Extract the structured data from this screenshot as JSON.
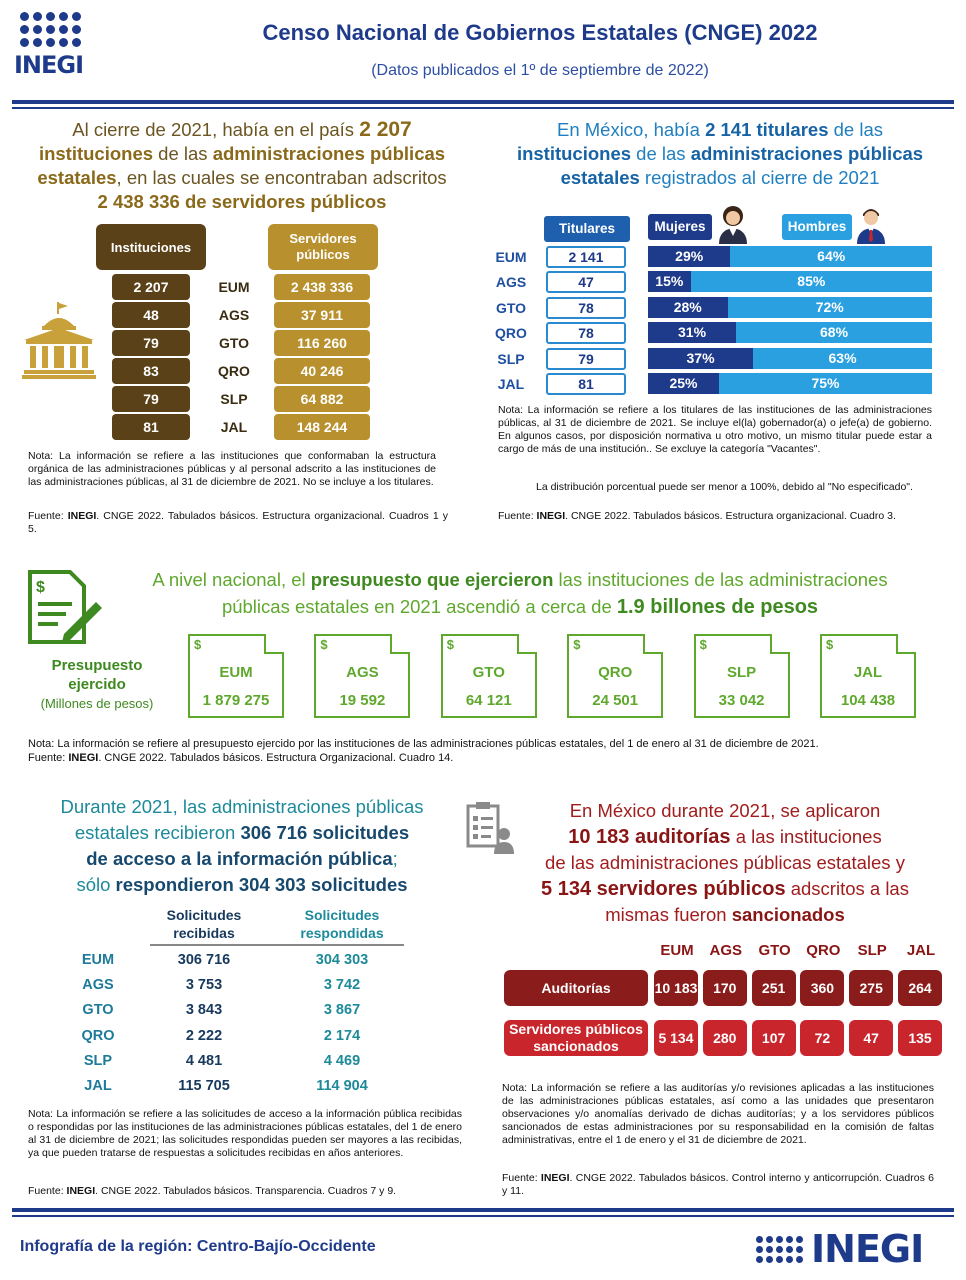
{
  "header": {
    "logo_text": "INEGI",
    "title": "Censo Nacional de Gobiernos Estatales (CNGE) 2022",
    "subtitle": "(Datos publicados el 1º de septiembre de 2022)"
  },
  "instituciones": {
    "line1a": "Al cierre de 2021, había en el país ",
    "line1b": "2 207",
    "line2a": "instituciones",
    "line2b": " de las ",
    "line2c": "administraciones públicas",
    "line3a": "estatales",
    "line3b": ", en las cuales se encontraban adscritos",
    "line4": "2 438 336 de servidores públicos",
    "col_instituciones": "Instituciones",
    "col_servidores": "Servidores públicos",
    "rows": [
      {
        "inst": "2 207",
        "state": "EUM",
        "serv": "2 438 336"
      },
      {
        "inst": "48",
        "state": "AGS",
        "serv": "37 911"
      },
      {
        "inst": "79",
        "state": "GTO",
        "serv": "116 260"
      },
      {
        "inst": "83",
        "state": "QRO",
        "serv": "40 246"
      },
      {
        "inst": "79",
        "state": "SLP",
        "serv": "64 882"
      },
      {
        "inst": "81",
        "state": "JAL",
        "serv": "148 244"
      }
    ],
    "note": "Nota: La información se refiere a las instituciones que conformaban la estructura orgánica de las administraciones públicas y al personal adscrito a las instituciones de las administraciones públicas, al 31 de diciembre de 2021. No se incluye a los titulares.",
    "source_label": "Fuente: ",
    "source_org": "INEGI",
    "source_text": ". CNGE 2022. Tabulados básicos. Estructura organizacional. Cuadros 1 y 5."
  },
  "titulares": {
    "line1a": "En México, había ",
    "line1b": "2 141 titulares",
    "line1c": " de las",
    "line2a": "instituciones",
    "line2b": " de las ",
    "line2c": "administraciones públicas",
    "line3a": "estatales",
    "line3b": " registrados al cierre de 2021",
    "col_titulares": "Titulares",
    "col_mujeres": "Mujeres",
    "col_hombres": "Hombres",
    "rows": [
      {
        "state": "EUM",
        "titulares": "2 141",
        "mujeres": "29%",
        "hombres": "64%",
        "m": 29
      },
      {
        "state": "AGS",
        "titulares": "47",
        "mujeres": "15%",
        "hombres": "85%",
        "m": 15
      },
      {
        "state": "GTO",
        "titulares": "78",
        "mujeres": "28%",
        "hombres": "72%",
        "m": 28
      },
      {
        "state": "QRO",
        "titulares": "78",
        "mujeres": "31%",
        "hombres": "68%",
        "m": 31
      },
      {
        "state": "SLP",
        "titulares": "79",
        "mujeres": "37%",
        "hombres": "63%",
        "m": 37
      },
      {
        "state": "JAL",
        "titulares": "81",
        "mujeres": "25%",
        "hombres": "75%",
        "m": 25
      }
    ],
    "note": "Nota: La información se refiere a los titulares de las instituciones de las administraciones públicas, al 31 de diciembre de 2021. Se incluye el(la) gobernador(a) o jefe(a) de gobierno. En algunos casos, por disposición normativa u otro motivo, un mismo titular puede estar a cargo de más de una institución.. Se excluye la categoría \"Vacantes\".",
    "note2": "La distribución porcentual puede ser menor a 100%, debido al \"No especificado\".",
    "source_label": "Fuente: ",
    "source_org": "INEGI",
    "source_text": ". CNGE 2022. Tabulados básicos. Estructura organizacional. Cuadro 3."
  },
  "presupuesto": {
    "line1a": "A nivel nacional, el ",
    "line1b": "presupuesto que ejercieron",
    "line1c": " las instituciones de las administraciones",
    "line2a": "públicas estatales en 2021 ascendió a cerca de ",
    "line2b": "1.9 billones de pesos",
    "label1": "Presupuesto",
    "label2": "ejercido",
    "label3": "(Millones de pesos)",
    "dollar": "$",
    "items": [
      {
        "state": "EUM",
        "value": "1 879 275"
      },
      {
        "state": "AGS",
        "value": "19 592"
      },
      {
        "state": "GTO",
        "value": "64 121"
      },
      {
        "state": "QRO",
        "value": "24 501"
      },
      {
        "state": "SLP",
        "value": "33 042"
      },
      {
        "state": "JAL",
        "value": "104 438"
      }
    ],
    "note": "Nota: La información se refiere al presupuesto ejercido por las instituciones de las administraciones públicas estatales, del 1 de enero al 31 de diciembre de 2021.",
    "source_label": "Fuente: ",
    "source_org": "INEGI",
    "source_text": ". CNGE 2022. Tabulados básicos. Estructura Organizacional. Cuadro 14."
  },
  "solicitudes": {
    "line1": "Durante 2021, las administraciones públicas",
    "line2a": "estatales recibieron ",
    "line2b": "306 716 solicitudes",
    "line3a": "de acceso a la información pública",
    "line3b": ";",
    "line4a": "sólo ",
    "line4b": "respondieron 304 303 solicitudes",
    "col_recibidas": "Solicitudes recibidas",
    "col_respondidas": "Solicitudes respondidas",
    "rows": [
      {
        "state": "EUM",
        "recibidas": "306 716",
        "respondidas": "304 303"
      },
      {
        "state": "AGS",
        "recibidas": "3 753",
        "respondidas": "3 742"
      },
      {
        "state": "GTO",
        "recibidas": "3 843",
        "respondidas": "3 867"
      },
      {
        "state": "QRO",
        "recibidas": "2 222",
        "respondidas": "2 174"
      },
      {
        "state": "SLP",
        "recibidas": "4 481",
        "respondidas": "4 469"
      },
      {
        "state": "JAL",
        "recibidas": "115 705",
        "respondidas": "114 904"
      }
    ],
    "note": "Nota: La información se refiere a las solicitudes de acceso a la información pública recibidas o respondidas por las instituciones de las administraciones públicas estatales, del 1 de enero al 31 de diciembre de 2021; las solicitudes respondidas pueden ser mayores a las recibidas, ya que pueden tratarse de respuestas a solicitudes recibidas en años anteriores.",
    "source_label": "Fuente: ",
    "source_org": "INEGI",
    "source_text": ". CNGE 2022. Tabulados básicos. Transparencia. Cuadros 7 y 9."
  },
  "auditorias": {
    "line1": "En México durante 2021, se aplicaron",
    "line2a": "10 183 auditorías",
    "line2b": " a las instituciones",
    "line3": "de las administraciones públicas estatales y",
    "line4a": "5 134 servidores públicos",
    "line4b": " adscritos a las",
    "line5a": "mismas fueron ",
    "line5b": "sancionados",
    "states": [
      "EUM",
      "AGS",
      "GTO",
      "QRO",
      "SLP",
      "JAL"
    ],
    "row1_label": "Auditorías",
    "row1": [
      "10 183",
      "170",
      "251",
      "360",
      "275",
      "264"
    ],
    "row2_label": "Servidores públicos sancionados",
    "row2": [
      "5 134",
      "280",
      "107",
      "72",
      "47",
      "135"
    ],
    "note": "Nota: La información se refiere a las auditorías y/o revisiones aplicadas a las instituciones de las administraciones públicas estatales, así como a las unidades que presentaron observaciones y/o anomalías derivado de dichas auditorías; y a los servidores públicos sancionados de estas administraciones por su responsabilidad en la comisión de faltas administrativas, entre el 1 de enero y el 31 de diciembre de 2021.",
    "source_label": "Fuente: ",
    "source_org": "INEGI",
    "source_text": ". CNGE 2022. Tabulados básicos. Control interno y anticorrupción. Cuadros 6 y 11."
  },
  "footer": {
    "text": "Infografía de la región: Centro-Bajío-Occidente",
    "logo_text": "INEGI"
  },
  "colors": {
    "navy": "#1e3a8a",
    "gold": "#b8902e",
    "brown": "#5a4118",
    "blue": "#2aa0e0",
    "green": "#5fa82e",
    "teal": "#1d8a9a",
    "darkred": "#8a1c1c",
    "red": "#c9252c"
  }
}
